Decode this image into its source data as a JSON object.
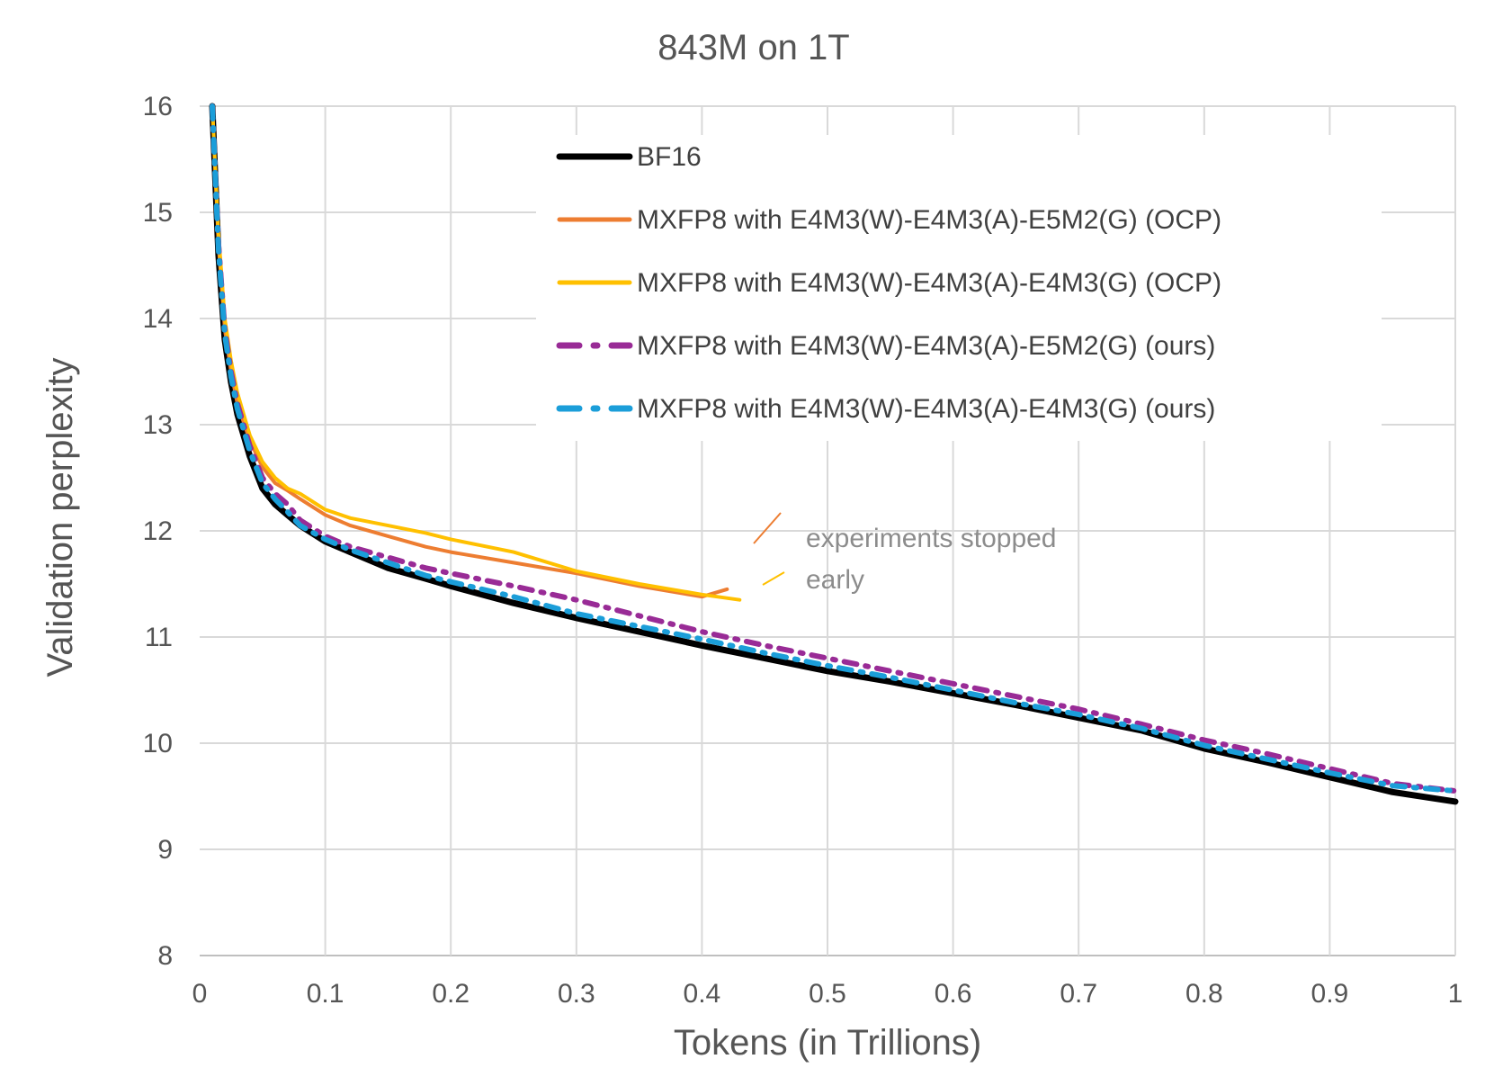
{
  "chart_data": {
    "type": "line",
    "title": "843M on 1T",
    "xlabel": "Tokens (in Trillions)",
    "ylabel": "Validation perplexity",
    "xlim": [
      0,
      1
    ],
    "ylim": [
      8,
      16
    ],
    "xticks": [
      0,
      0.1,
      0.2,
      0.3,
      0.4,
      0.5,
      0.6,
      0.7,
      0.8,
      0.9,
      1
    ],
    "xtick_labels": [
      "0",
      "0.1",
      "0.2",
      "0.3",
      "0.4",
      "0.5",
      "0.6",
      "0.7",
      "0.8",
      "0.9",
      "1"
    ],
    "yticks": [
      8,
      9,
      10,
      11,
      12,
      13,
      14,
      15,
      16
    ],
    "ytick_labels": [
      "8",
      "9",
      "10",
      "11",
      "12",
      "13",
      "14",
      "15",
      "16"
    ],
    "grid": true,
    "legend_position": "top-right",
    "annotation": {
      "line1": "experiments stopped",
      "line2": "early"
    },
    "series": [
      {
        "name": "BF16",
        "color": "#000000",
        "style": "solid",
        "x": [
          0.01,
          0.015,
          0.02,
          0.025,
          0.03,
          0.04,
          0.05,
          0.06,
          0.07,
          0.08,
          0.1,
          0.12,
          0.15,
          0.18,
          0.2,
          0.25,
          0.3,
          0.35,
          0.4,
          0.45,
          0.5,
          0.55,
          0.6,
          0.65,
          0.7,
          0.75,
          0.8,
          0.85,
          0.9,
          0.95,
          1.0
        ],
        "y": [
          16.0,
          14.6,
          13.8,
          13.4,
          13.1,
          12.7,
          12.4,
          12.25,
          12.15,
          12.05,
          11.9,
          11.8,
          11.65,
          11.55,
          11.48,
          11.32,
          11.18,
          11.05,
          10.92,
          10.8,
          10.68,
          10.58,
          10.47,
          10.36,
          10.24,
          10.12,
          9.95,
          9.82,
          9.68,
          9.54,
          9.45
        ]
      },
      {
        "name": "MXFP8 with E4M3(W)-E4M3(A)-E5M2(G) (OCP)",
        "color": "#ED7D31",
        "style": "solid",
        "x": [
          0.01,
          0.015,
          0.02,
          0.025,
          0.03,
          0.04,
          0.05,
          0.06,
          0.07,
          0.08,
          0.1,
          0.12,
          0.15,
          0.18,
          0.2,
          0.25,
          0.3,
          0.35,
          0.4,
          0.42
        ],
        "y": [
          16.0,
          14.7,
          13.9,
          13.5,
          13.2,
          12.85,
          12.6,
          12.45,
          12.38,
          12.3,
          12.15,
          12.05,
          11.95,
          11.85,
          11.8,
          11.7,
          11.6,
          11.48,
          11.38,
          11.45
        ]
      },
      {
        "name": "MXFP8 with E4M3(W)-E4M3(A)-E4M3(G) (OCP)",
        "color": "#FFC000",
        "style": "solid",
        "x": [
          0.01,
          0.015,
          0.02,
          0.025,
          0.03,
          0.04,
          0.05,
          0.06,
          0.07,
          0.08,
          0.1,
          0.12,
          0.15,
          0.18,
          0.2,
          0.25,
          0.3,
          0.35,
          0.4,
          0.43
        ],
        "y": [
          16.0,
          14.8,
          14.0,
          13.6,
          13.3,
          12.9,
          12.65,
          12.5,
          12.4,
          12.35,
          12.2,
          12.12,
          12.05,
          11.98,
          11.92,
          11.8,
          11.62,
          11.5,
          11.4,
          11.35
        ]
      },
      {
        "name": "MXFP8 with E4M3(W)-E4M3(A)-E5M2(G) (ours)",
        "color": "#992B96",
        "style": "dashdot",
        "x": [
          0.01,
          0.015,
          0.02,
          0.025,
          0.03,
          0.04,
          0.05,
          0.06,
          0.07,
          0.08,
          0.1,
          0.12,
          0.15,
          0.18,
          0.2,
          0.25,
          0.3,
          0.35,
          0.4,
          0.45,
          0.5,
          0.55,
          0.6,
          0.65,
          0.7,
          0.75,
          0.8,
          0.85,
          0.9,
          0.95,
          1.0
        ],
        "y": [
          16.0,
          14.7,
          13.9,
          13.5,
          13.2,
          12.8,
          12.5,
          12.35,
          12.25,
          12.1,
          11.95,
          11.85,
          11.75,
          11.65,
          11.6,
          11.48,
          11.35,
          11.2,
          11.05,
          10.92,
          10.8,
          10.68,
          10.56,
          10.44,
          10.32,
          10.18,
          10.03,
          9.9,
          9.76,
          9.62,
          9.55
        ]
      },
      {
        "name": "MXFP8 with E4M3(W)-E4M3(A)-E4M3(G) (ours)",
        "color": "#1B9ED9",
        "style": "dashdot",
        "x": [
          0.01,
          0.015,
          0.02,
          0.025,
          0.03,
          0.04,
          0.05,
          0.06,
          0.07,
          0.08,
          0.1,
          0.12,
          0.15,
          0.18,
          0.2,
          0.25,
          0.3,
          0.35,
          0.4,
          0.45,
          0.5,
          0.55,
          0.6,
          0.65,
          0.7,
          0.75,
          0.8,
          0.85,
          0.9,
          0.95,
          1.0
        ],
        "y": [
          16.0,
          14.65,
          13.85,
          13.45,
          13.15,
          12.75,
          12.45,
          12.3,
          12.18,
          12.05,
          11.92,
          11.82,
          11.7,
          11.58,
          11.52,
          11.38,
          11.22,
          11.1,
          10.98,
          10.85,
          10.73,
          10.62,
          10.5,
          10.38,
          10.27,
          10.14,
          9.98,
          9.85,
          9.72,
          9.6,
          9.55
        ]
      }
    ]
  }
}
